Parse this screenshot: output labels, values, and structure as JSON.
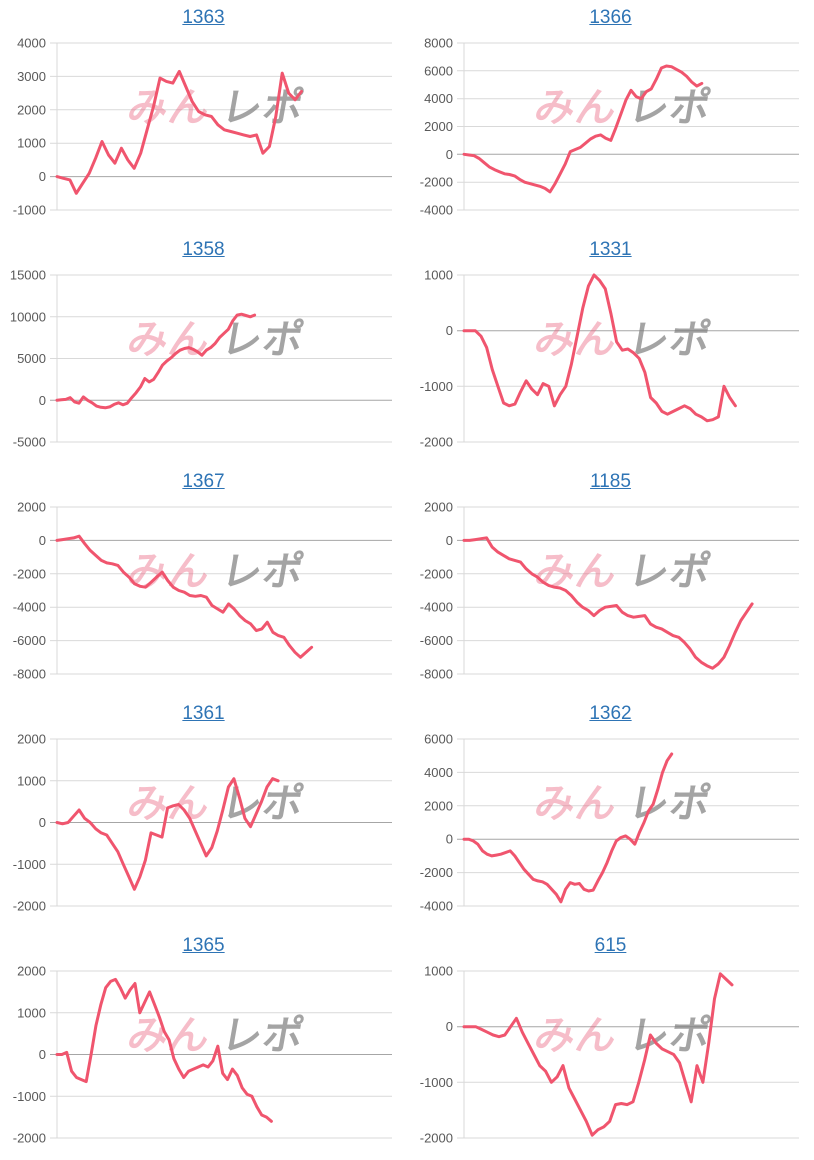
{
  "page": {
    "background": "#ffffff"
  },
  "style": {
    "line_color": "#f0556e",
    "title_color": "#2e74b5",
    "grid_color": "#d9d9d9",
    "zero_line_color": "#a6a6a6",
    "label_color": "#595959",
    "watermark_pink_color": "rgba(233,98,126,0.42)",
    "watermark_gray_color": "rgba(125,125,125,0.70)"
  },
  "watermark": {
    "pink_text": "みん",
    "gray_text": "レポ"
  },
  "chart_data": [
    {
      "type": "line",
      "title": "1363",
      "ylabel": "",
      "y_ticks": [
        4000,
        3000,
        2000,
        1000,
        0,
        -1000
      ],
      "ylim": [
        -1000,
        4000
      ],
      "grid": true,
      "legend": "none",
      "x_extent": 0.73,
      "values": [
        0,
        -50,
        -100,
        -500,
        -200,
        100,
        550,
        1050,
        650,
        400,
        850,
        500,
        250,
        700,
        1400,
        2100,
        2950,
        2850,
        2800,
        3150,
        2700,
        2250,
        1950,
        1850,
        1800,
        1550,
        1400,
        1350,
        1300,
        1250,
        1200,
        1250,
        700,
        900,
        1800,
        3100,
        2500,
        2300,
        2550
      ]
    },
    {
      "type": "line",
      "title": "1366",
      "ylabel": "",
      "y_ticks": [
        8000,
        6000,
        4000,
        2000,
        0,
        -2000,
        -4000
      ],
      "ylim": [
        -4000,
        8000
      ],
      "grid": true,
      "legend": "none",
      "x_extent": 0.71,
      "values": [
        0,
        -50,
        -100,
        -300,
        -600,
        -900,
        -1100,
        -1250,
        -1400,
        -1450,
        -1550,
        -1800,
        -2000,
        -2100,
        -2200,
        -2300,
        -2450,
        -2700,
        -2100,
        -1400,
        -700,
        200,
        350,
        500,
        800,
        1100,
        1300,
        1400,
        1150,
        1000,
        1900,
        2900,
        3900,
        4600,
        4150,
        4000,
        4500,
        4700,
        5400,
        6200,
        6350,
        6300,
        6100,
        5900,
        5600,
        5200,
        4900,
        5100
      ]
    },
    {
      "type": "line",
      "title": "1358",
      "ylabel": "",
      "y_ticks": [
        15000,
        10000,
        5000,
        0,
        -5000
      ],
      "ylim": [
        -5000,
        15000
      ],
      "grid": true,
      "legend": "none",
      "x_extent": 0.59,
      "values": [
        0,
        50,
        100,
        300,
        -200,
        -350,
        400,
        0,
        -300,
        -700,
        -850,
        -900,
        -800,
        -500,
        -300,
        -550,
        -350,
        300,
        900,
        1600,
        2600,
        2200,
        2500,
        3300,
        4200,
        4700,
        5100,
        5600,
        6000,
        6200,
        6300,
        6100,
        5800,
        5400,
        6000,
        6300,
        6800,
        7500,
        8000,
        8500,
        9500,
        10200,
        10300,
        10150,
        10000,
        10200
      ]
    },
    {
      "type": "line",
      "title": "1331",
      "ylabel": "",
      "y_ticks": [
        1000,
        0,
        -1000,
        -2000
      ],
      "ylim": [
        -2000,
        1000
      ],
      "grid": true,
      "legend": "none",
      "x_extent": 0.81,
      "values": [
        0,
        0,
        0,
        -100,
        -300,
        -700,
        -1000,
        -1300,
        -1350,
        -1320,
        -1100,
        -900,
        -1050,
        -1150,
        -950,
        -1000,
        -1350,
        -1150,
        -1000,
        -600,
        -100,
        400,
        800,
        1000,
        900,
        750,
        300,
        -200,
        -350,
        -330,
        -400,
        -500,
        -750,
        -1200,
        -1300,
        -1450,
        -1500,
        -1450,
        -1400,
        -1350,
        -1400,
        -1500,
        -1550,
        -1620,
        -1600,
        -1550,
        -1000,
        -1200,
        -1350
      ]
    },
    {
      "type": "line",
      "title": "1367",
      "ylabel": "",
      "y_ticks": [
        2000,
        0,
        -2000,
        -4000,
        -6000,
        -8000
      ],
      "ylim": [
        -8000,
        2000
      ],
      "grid": true,
      "legend": "none",
      "x_extent": 0.76,
      "values": [
        0,
        50,
        100,
        150,
        250,
        -200,
        -600,
        -900,
        -1200,
        -1350,
        -1400,
        -1500,
        -1900,
        -2200,
        -2600,
        -2750,
        -2800,
        -2500,
        -2200,
        -1900,
        -2400,
        -2800,
        -3000,
        -3100,
        -3300,
        -3350,
        -3300,
        -3400,
        -3900,
        -4100,
        -4300,
        -3800,
        -4100,
        -4500,
        -4800,
        -5000,
        -5400,
        -5300,
        -4900,
        -5500,
        -5700,
        -5800,
        -6300,
        -6700,
        -7000,
        -6700,
        -6400
      ]
    },
    {
      "type": "line",
      "title": "1185",
      "ylabel": "",
      "y_ticks": [
        2000,
        0,
        -2000,
        -4000,
        -6000,
        -8000
      ],
      "ylim": [
        -8000,
        2000
      ],
      "grid": true,
      "legend": "none",
      "x_extent": 0.86,
      "values": [
        0,
        0,
        50,
        100,
        150,
        -400,
        -700,
        -900,
        -1100,
        -1200,
        -1300,
        -1700,
        -2000,
        -2200,
        -2500,
        -2700,
        -2800,
        -2850,
        -3000,
        -3300,
        -3700,
        -4000,
        -4200,
        -4500,
        -4200,
        -4000,
        -3950,
        -3900,
        -4300,
        -4500,
        -4600,
        -4550,
        -4500,
        -5000,
        -5200,
        -5300,
        -5500,
        -5700,
        -5800,
        -6100,
        -6500,
        -7000,
        -7300,
        -7500,
        -7650,
        -7400,
        -7000,
        -6300,
        -5500,
        -4800,
        -4300,
        -3800
      ]
    },
    {
      "type": "line",
      "title": "1361",
      "ylabel": "",
      "y_ticks": [
        2000,
        1000,
        0,
        -1000,
        -2000
      ],
      "ylim": [
        -2000,
        2000
      ],
      "grid": true,
      "legend": "none",
      "x_extent": 0.66,
      "values": [
        0,
        -30,
        0,
        150,
        300,
        100,
        0,
        -150,
        -250,
        -300,
        -500,
        -700,
        -1000,
        -1300,
        -1600,
        -1300,
        -900,
        -250,
        -300,
        -350,
        350,
        400,
        430,
        300,
        100,
        -200,
        -500,
        -800,
        -600,
        -200,
        300,
        850,
        1050,
        600,
        100,
        -100,
        200,
        500,
        850,
        1050,
        1000
      ]
    },
    {
      "type": "line",
      "title": "1362",
      "ylabel": "",
      "y_ticks": [
        6000,
        4000,
        2000,
        0,
        -2000,
        -4000
      ],
      "ylim": [
        -4000,
        6000
      ],
      "grid": true,
      "legend": "none",
      "x_extent": 0.62,
      "values": [
        0,
        0,
        -100,
        -300,
        -700,
        -900,
        -1000,
        -950,
        -900,
        -800,
        -700,
        -1000,
        -1400,
        -1800,
        -2100,
        -2400,
        -2500,
        -2550,
        -2700,
        -3000,
        -3300,
        -3750,
        -3000,
        -2600,
        -2700,
        -2650,
        -3000,
        -3100,
        -3050,
        -2500,
        -2000,
        -1400,
        -700,
        -100,
        100,
        200,
        0,
        -300,
        400,
        1000,
        1700,
        2100,
        3000,
        4000,
        4700,
        5100
      ]
    },
    {
      "type": "line",
      "title": "1365",
      "ylabel": "",
      "y_ticks": [
        2000,
        1000,
        0,
        -1000,
        -2000
      ],
      "ylim": [
        -2000,
        2000
      ],
      "grid": true,
      "legend": "none",
      "x_extent": 0.64,
      "values": [
        0,
        0,
        50,
        -400,
        -550,
        -600,
        -650,
        0,
        700,
        1200,
        1600,
        1750,
        1800,
        1600,
        1350,
        1550,
        1700,
        1000,
        1250,
        1500,
        1200,
        900,
        550,
        350,
        -100,
        -350,
        -550,
        -400,
        -350,
        -300,
        -250,
        -300,
        -150,
        200,
        -450,
        -600,
        -350,
        -500,
        -800,
        -950,
        -1000,
        -1250,
        -1450,
        -1500,
        -1600
      ]
    },
    {
      "type": "line",
      "title": "615",
      "ylabel": "",
      "y_ticks": [
        1000,
        0,
        -1000,
        -2000
      ],
      "ylim": [
        -2000,
        1000
      ],
      "grid": true,
      "legend": "none",
      "x_extent": 0.8,
      "values": [
        0,
        0,
        0,
        -50,
        -100,
        -150,
        -180,
        -150,
        0,
        150,
        -100,
        -300,
        -500,
        -700,
        -800,
        -1000,
        -900,
        -700,
        -1100,
        -1300,
        -1500,
        -1700,
        -1950,
        -1850,
        -1800,
        -1700,
        -1400,
        -1380,
        -1400,
        -1350,
        -1000,
        -600,
        -150,
        -300,
        -400,
        -450,
        -500,
        -650,
        -1000,
        -1350,
        -700,
        -1000,
        -300,
        500,
        950,
        850,
        750
      ]
    }
  ]
}
